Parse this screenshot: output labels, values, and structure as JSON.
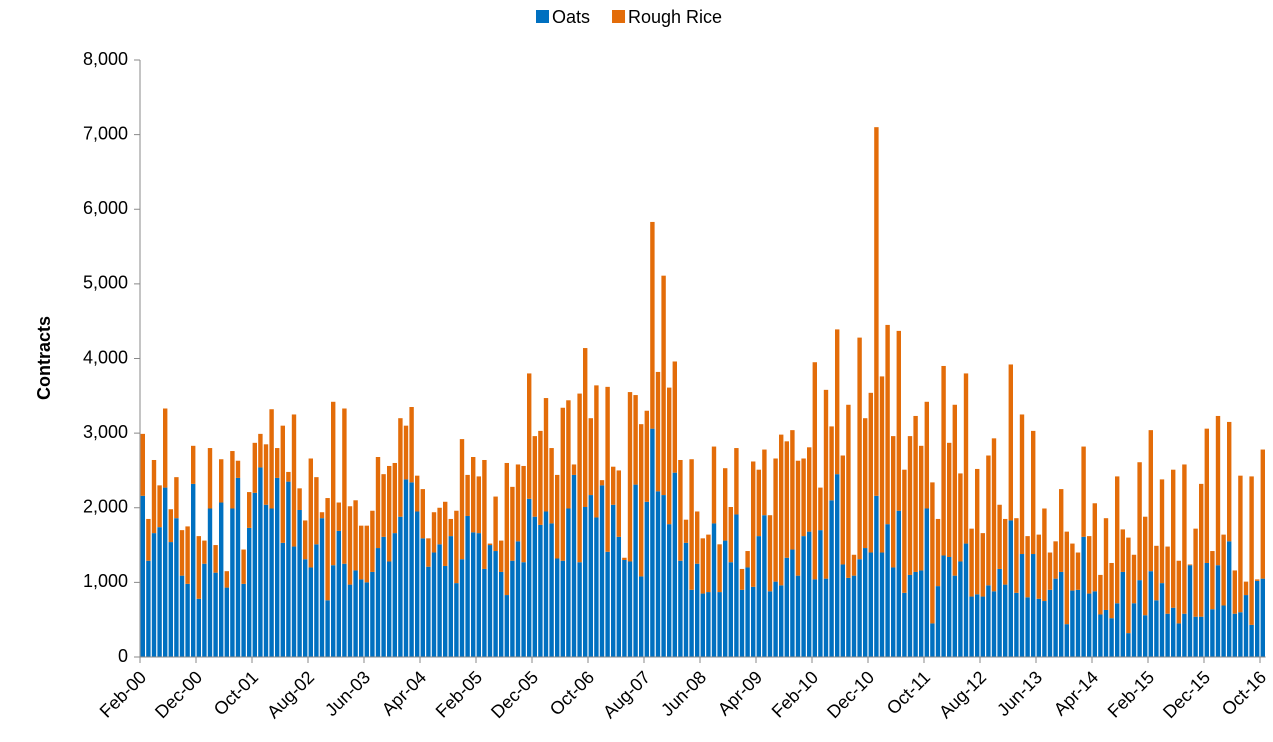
{
  "chart_data": {
    "type": "stacked_bar",
    "y_label": "Contracts",
    "legend": "top",
    "grid": false,
    "ylim": [
      0,
      8000
    ],
    "yticks": [
      0,
      {
        "value": 1000,
        "label": "1,000"
      },
      {
        "value": 2000,
        "label": "2,000"
      },
      {
        "value": 3000,
        "label": "3,000"
      },
      {
        "value": 4000,
        "label": "4,000"
      },
      {
        "value": 5000,
        "label": "5,000"
      },
      {
        "value": 6000,
        "label": "6,000"
      },
      {
        "value": 7000,
        "label": "7,000"
      },
      {
        "value": 8000,
        "label": "8,000"
      }
    ],
    "categories": [
      "Feb-00",
      null,
      null,
      null,
      null,
      null,
      null,
      null,
      null,
      null,
      "Dec-00",
      null,
      null,
      null,
      null,
      null,
      null,
      null,
      null,
      null,
      "Oct-01",
      null,
      null,
      null,
      null,
      null,
      null,
      null,
      null,
      null,
      "Aug-02",
      null,
      null,
      null,
      null,
      null,
      null,
      null,
      null,
      null,
      "Jun-03",
      null,
      null,
      null,
      null,
      null,
      null,
      null,
      null,
      null,
      "Apr-04",
      null,
      null,
      null,
      null,
      null,
      null,
      null,
      null,
      null,
      "Feb-05",
      null,
      null,
      null,
      null,
      null,
      null,
      null,
      null,
      null,
      "Dec-05",
      null,
      null,
      null,
      null,
      null,
      null,
      null,
      null,
      null,
      "Oct-06",
      null,
      null,
      null,
      null,
      null,
      null,
      null,
      null,
      null,
      "Aug-07",
      null,
      null,
      null,
      null,
      null,
      null,
      null,
      null,
      null,
      "Jun-08",
      null,
      null,
      null,
      null,
      null,
      null,
      null,
      null,
      null,
      "Apr-09",
      null,
      null,
      null,
      null,
      null,
      null,
      null,
      null,
      null,
      "Feb-10",
      null,
      null,
      null,
      null,
      null,
      null,
      null,
      null,
      null,
      "Dec-10",
      null,
      null,
      null,
      null,
      null,
      null,
      null,
      null,
      null,
      "Oct-11",
      null,
      null,
      null,
      null,
      null,
      null,
      null,
      null,
      null,
      "Aug-12",
      null,
      null,
      null,
      null,
      null,
      null,
      null,
      null,
      null,
      "Jun-13",
      null,
      null,
      null,
      null,
      null,
      null,
      null,
      null,
      null,
      "Apr-14",
      null,
      null,
      null,
      null,
      null,
      null,
      null,
      null,
      null,
      "Feb-15",
      null,
      null,
      null,
      null,
      null,
      null,
      null,
      null,
      null,
      "Dec-15",
      null,
      null,
      null,
      null,
      null,
      null,
      null,
      null,
      null,
      "Oct-16"
    ],
    "series": [
      {
        "name": "Oats",
        "color": "#0070c0",
        "values": [
          2160,
          1290,
          1660,
          1740,
          2270,
          1540,
          1860,
          1090,
          980,
          2320,
          780,
          1250,
          1990,
          1130,
          2070,
          930,
          1990,
          2400,
          980,
          1730,
          2200,
          2540,
          2040,
          1990,
          2400,
          1530,
          2350,
          1480,
          1970,
          1310,
          1200,
          1510,
          1860,
          760,
          1230,
          1690,
          1250,
          970,
          1160,
          1040,
          1000,
          1140,
          1460,
          1610,
          1280,
          1660,
          1880,
          2380,
          2340,
          1950,
          1590,
          1210,
          1400,
          1510,
          1220,
          1620,
          990,
          1310,
          1890,
          1670,
          1660,
          1180,
          1500,
          1420,
          1140,
          830,
          1290,
          1550,
          1270,
          2120,
          1880,
          1770,
          1950,
          1790,
          1320,
          1290,
          1990,
          2440,
          1270,
          2010,
          2170,
          1870,
          2300,
          1410,
          2040,
          1610,
          1300,
          1280,
          2310,
          1080,
          2080,
          3060,
          2220,
          2170,
          1780,
          2470,
          1290,
          1530,
          900,
          1250,
          850,
          870,
          1790,
          870,
          1560,
          1270,
          1910,
          900,
          1200,
          940,
          1620,
          1900,
          880,
          1010,
          960,
          1330,
          1440,
          1090,
          1620,
          1680,
          1040,
          1700,
          1050,
          2100,
          2450,
          1240,
          1060,
          1090,
          1310,
          1460,
          1400,
          2160,
          1400,
          1780,
          1200,
          1960,
          860,
          1100,
          1140,
          1160,
          1990,
          450,
          950,
          1360,
          1340,
          1090,
          1280,
          1520,
          810,
          840,
          810,
          960,
          880,
          1180,
          970,
          1830,
          860,
          1380,
          800,
          1380,
          780,
          750,
          900,
          1050,
          1140,
          440,
          890,
          900,
          1610,
          850,
          880,
          570,
          630,
          520,
          720,
          1140,
          320,
          720,
          1030,
          560,
          1150,
          760,
          990,
          580,
          660,
          450,
          580,
          1230,
          540,
          540,
          1260,
          640,
          1230,
          690,
          1550,
          580,
          600,
          830,
          430,
          1020,
          1050
        ]
      },
      {
        "name": "Rough Rice",
        "color": "#e36c09",
        "values": [
          830,
          560,
          980,
          560,
          1060,
          440,
          550,
          610,
          770,
          510,
          840,
          310,
          810,
          370,
          580,
          220,
          770,
          230,
          460,
          480,
          670,
          450,
          810,
          1330,
          400,
          1570,
          130,
          1770,
          290,
          520,
          1460,
          900,
          80,
          1370,
          2190,
          380,
          2080,
          1050,
          940,
          720,
          760,
          820,
          1220,
          840,
          1280,
          940,
          1320,
          720,
          1010,
          480,
          660,
          380,
          540,
          490,
          860,
          230,
          970,
          1610,
          550,
          1010,
          760,
          1460,
          20,
          730,
          420,
          1770,
          990,
          1030,
          1290,
          1680,
          1080,
          1260,
          1520,
          1010,
          1120,
          2050,
          1450,
          140,
          2260,
          2130,
          1030,
          1770,
          70,
          2210,
          510,
          890,
          30,
          2270,
          1200,
          2040,
          1220,
          2770,
          1600,
          2940,
          1830,
          1490,
          1350,
          310,
          1750,
          700,
          740,
          770,
          1030,
          640,
          970,
          740,
          890,
          280,
          220,
          1680,
          890,
          880,
          1020,
          1650,
          2020,
          1560,
          1600,
          1540,
          1040,
          1130,
          2910,
          570,
          2530,
          990,
          1940,
          1460,
          2320,
          280,
          2970,
          1740,
          2140,
          4940,
          2360,
          2670,
          1760,
          2410,
          1650,
          1860,
          2090,
          1670,
          1430,
          1890,
          900,
          2540,
          1530,
          2290,
          1180,
          2280,
          910,
          1680,
          850,
          1740,
          2050,
          860,
          880,
          2090,
          1000,
          1870,
          820,
          1650,
          860,
          1240,
          500,
          500,
          1110,
          1240,
          630,
          500,
          1210,
          770,
          1180,
          530,
          1230,
          740,
          1700,
          570,
          1280,
          650,
          1580,
          1320,
          1890,
          730,
          1390,
          900,
          1850,
          840,
          2000,
          10,
          1180,
          1780,
          1800,
          780,
          2000,
          950,
          1600,
          580,
          1830,
          180,
          1990,
          20,
          1730
        ]
      }
    ]
  }
}
